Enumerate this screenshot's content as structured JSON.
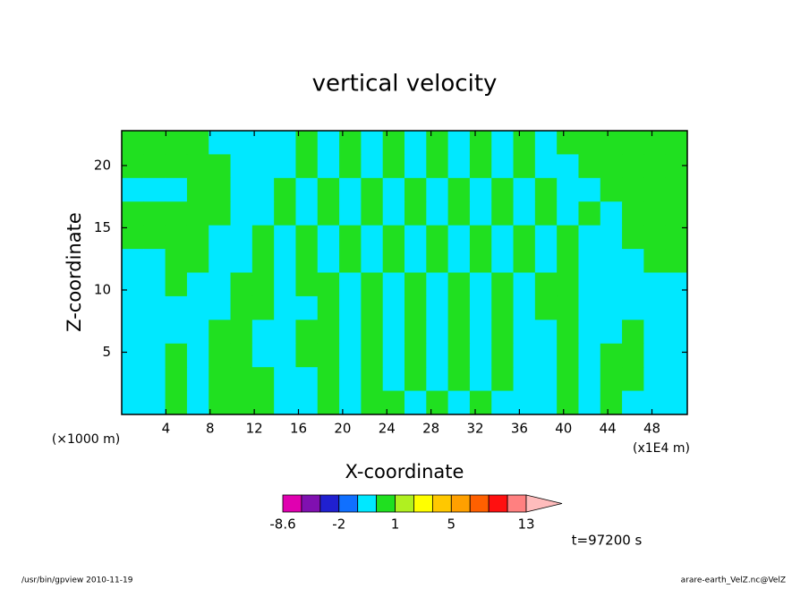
{
  "chart_data": {
    "type": "contour",
    "title": "vertical velocity",
    "x_label": "X-coordinate",
    "y_label": "Z-coordinate",
    "x_unit": "(x1E4 m)",
    "y_unit": "(×1000 m)",
    "time_label": "t=97200 s",
    "footer_left": "/usr/bin/gpview   2010-11-19",
    "footer_right": "arare-earth_VelZ.nc@VelZ",
    "xlim": [
      0,
      51.2
    ],
    "ylim": [
      0,
      22.8
    ],
    "xticks": [
      4,
      8,
      12,
      16,
      20,
      24,
      28,
      32,
      36,
      40,
      44,
      48
    ],
    "yticks": [
      5,
      10,
      15,
      20
    ],
    "field": [
      [
        0.5,
        0.5,
        0.5,
        0.5,
        -0.5,
        -0.5,
        -0.5,
        -0.5,
        0.5,
        -0.5,
        0.5,
        -0.5,
        0.5,
        -0.5,
        0.5,
        -0.5,
        0.5,
        -0.5,
        0.5,
        -0.5,
        0.5,
        0.5,
        0.5,
        0.5,
        0.5,
        0.5
      ],
      [
        0.5,
        0.5,
        0.5,
        0.5,
        0.5,
        -0.5,
        -0.5,
        -0.5,
        0.5,
        -0.5,
        0.5,
        -0.5,
        0.5,
        -0.5,
        0.5,
        -0.5,
        0.5,
        -0.5,
        0.5,
        -0.5,
        -0.5,
        0.5,
        0.5,
        0.5,
        0.5,
        0.5
      ],
      [
        -0.5,
        -0.5,
        -0.5,
        0.5,
        0.5,
        -0.5,
        -0.5,
        0.5,
        -0.5,
        0.5,
        -0.5,
        0.5,
        -0.5,
        0.5,
        -0.5,
        0.5,
        -0.5,
        0.5,
        -0.5,
        0.5,
        -0.5,
        -0.5,
        0.5,
        0.5,
        0.5,
        0.5
      ],
      [
        0.5,
        0.5,
        0.5,
        0.5,
        0.5,
        -0.5,
        -0.5,
        0.5,
        -0.5,
        0.5,
        -0.5,
        0.5,
        -0.5,
        0.5,
        -0.5,
        0.5,
        -0.5,
        0.5,
        -0.5,
        0.5,
        -0.5,
        0.5,
        -0.5,
        0.5,
        0.5,
        0.5
      ],
      [
        0.5,
        0.5,
        0.5,
        0.5,
        -0.5,
        -0.5,
        0.5,
        -0.5,
        0.5,
        -0.5,
        0.5,
        -0.5,
        0.5,
        -0.5,
        0.5,
        -0.5,
        0.5,
        -0.5,
        0.5,
        -0.5,
        0.5,
        -0.5,
        -0.5,
        0.5,
        0.5,
        0.5
      ],
      [
        -0.5,
        -0.5,
        0.5,
        0.5,
        -0.5,
        -0.5,
        0.5,
        -0.5,
        0.5,
        -0.5,
        0.5,
        -0.5,
        0.5,
        -0.5,
        0.5,
        -0.5,
        0.5,
        -0.5,
        0.5,
        -0.5,
        0.5,
        -0.5,
        -0.5,
        -0.5,
        0.5,
        0.5
      ],
      [
        -0.5,
        -0.5,
        0.5,
        -0.5,
        -0.5,
        0.5,
        0.5,
        -0.5,
        0.5,
        0.5,
        -0.5,
        0.5,
        -0.5,
        0.5,
        -0.5,
        0.5,
        -0.5,
        0.5,
        -0.5,
        0.5,
        0.5,
        -0.5,
        -0.5,
        -0.5,
        -0.5,
        -0.5
      ],
      [
        -0.5,
        -0.5,
        -0.5,
        -0.5,
        -0.5,
        0.5,
        0.5,
        -0.5,
        -0.5,
        0.5,
        -0.5,
        0.5,
        -0.5,
        0.5,
        -0.5,
        0.5,
        -0.5,
        0.5,
        -0.5,
        0.5,
        0.5,
        -0.5,
        -0.5,
        -0.5,
        -0.5,
        -0.5
      ],
      [
        -0.5,
        -0.5,
        -0.5,
        -0.5,
        0.5,
        0.5,
        -0.5,
        -0.5,
        0.5,
        0.5,
        -0.5,
        0.5,
        -0.5,
        0.5,
        -0.5,
        0.5,
        -0.5,
        0.5,
        -0.5,
        -0.5,
        0.5,
        -0.5,
        -0.5,
        0.5,
        -0.5,
        -0.5
      ],
      [
        -0.5,
        -0.5,
        0.5,
        -0.5,
        0.5,
        0.5,
        -0.5,
        -0.5,
        0.5,
        0.5,
        -0.5,
        0.5,
        -0.5,
        0.5,
        -0.5,
        0.5,
        -0.5,
        0.5,
        -0.5,
        -0.5,
        0.5,
        -0.5,
        0.5,
        0.5,
        -0.5,
        -0.5
      ],
      [
        -0.5,
        -0.5,
        0.5,
        -0.5,
        0.5,
        0.5,
        0.5,
        -0.5,
        -0.5,
        0.5,
        -0.5,
        0.5,
        -0.5,
        0.5,
        -0.5,
        0.5,
        -0.5,
        0.5,
        -0.5,
        -0.5,
        0.5,
        -0.5,
        0.5,
        0.5,
        -0.5,
        -0.5
      ],
      [
        -0.5,
        -0.5,
        0.5,
        -0.5,
        0.5,
        0.5,
        0.5,
        -0.5,
        -0.5,
        0.5,
        -0.5,
        0.5,
        0.5,
        -0.5,
        0.5,
        -0.5,
        0.5,
        -0.5,
        -0.5,
        -0.5,
        0.5,
        -0.5,
        0.5,
        -0.5,
        -0.5,
        -0.5
      ]
    ],
    "colorbar": {
      "levels": [
        -8.6,
        -6.4,
        -4.2,
        -2,
        -1,
        0,
        1,
        2,
        3,
        5,
        7,
        9,
        11,
        13
      ],
      "colors": [
        "#e000b0",
        "#8010b0",
        "#2020d0",
        "#1070ff",
        "#00e8ff",
        "#20e020",
        "#b0f020",
        "#ffff00",
        "#ffc800",
        "#ffa000",
        "#ff6000",
        "#ff1010",
        "#ff8080"
      ],
      "over_color": "#ffbcbc",
      "ticks": [
        -8.6,
        -2,
        1,
        5,
        13
      ]
    }
  }
}
